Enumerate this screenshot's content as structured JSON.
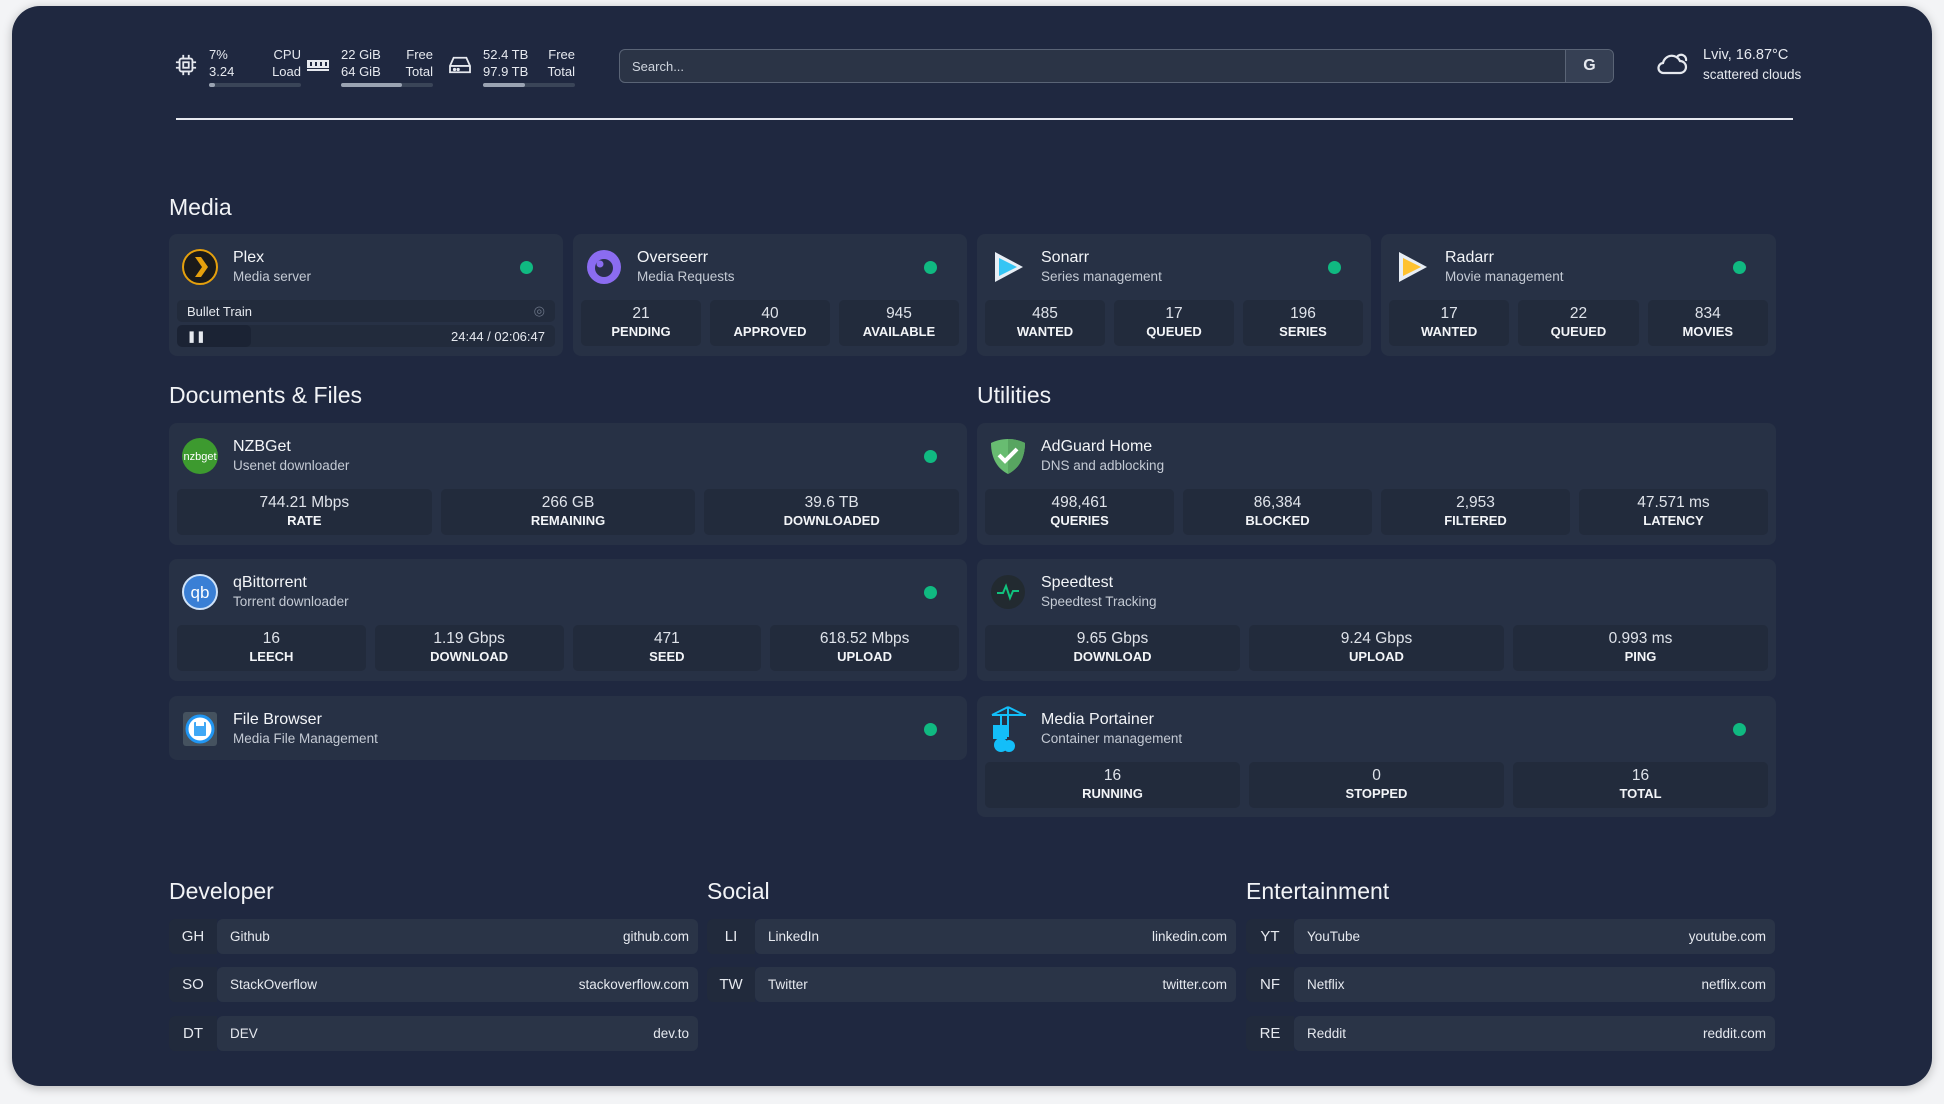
{
  "header": {
    "cpu": {
      "icon": "cpu-icon",
      "value": "7%",
      "label": "CPU",
      "value2": "3.24",
      "label2": "Load",
      "percent": 7
    },
    "memory": {
      "icon": "memory-icon",
      "value": "22 GiB",
      "label": "Free",
      "value2": "64 GiB",
      "label2": "Total",
      "percent": 66
    },
    "disk": {
      "icon": "disk-icon",
      "value": "52.4 TB",
      "label": "Free",
      "value2": "97.9 TB",
      "label2": "Total",
      "percent": 46
    },
    "search": {
      "placeholder": "Search...",
      "button": "G"
    },
    "weather": {
      "icon": "cloud-icon",
      "location": "Lviv, 16.87°C",
      "condition": "scattered clouds"
    }
  },
  "colors": {
    "background": "#1f2840",
    "card": "#273145",
    "status_online": "#10b981"
  },
  "sections": {
    "media": "Media",
    "documents": "Documents & Files",
    "utilities": "Utilities",
    "developer": "Developer",
    "social": "Social",
    "entertainment": "Entertainment"
  },
  "services": [
    {
      "id": "plex",
      "group": "media",
      "title": "Plex",
      "subtitle": "Media server",
      "icon": "plex-icon",
      "status": "online",
      "now_playing": {
        "title": "Bullet Train",
        "time": "24:44 / 02:06:47",
        "progress_percent": 19.5
      }
    },
    {
      "id": "overseerr",
      "group": "media",
      "title": "Overseerr",
      "subtitle": "Media Requests",
      "icon": "overseerr-icon",
      "status": "online",
      "stats": [
        {
          "value": "21",
          "label": "PENDING"
        },
        {
          "value": "40",
          "label": "APPROVED"
        },
        {
          "value": "945",
          "label": "AVAILABLE"
        }
      ]
    },
    {
      "id": "sonarr",
      "group": "media",
      "title": "Sonarr",
      "subtitle": "Series management",
      "icon": "sonarr-icon",
      "status": "online",
      "stats": [
        {
          "value": "485",
          "label": "WANTED"
        },
        {
          "value": "17",
          "label": "QUEUED"
        },
        {
          "value": "196",
          "label": "SERIES"
        }
      ]
    },
    {
      "id": "radarr",
      "group": "media",
      "title": "Radarr",
      "subtitle": "Movie management",
      "icon": "radarr-icon",
      "status": "online",
      "stats": [
        {
          "value": "17",
          "label": "WANTED"
        },
        {
          "value": "22",
          "label": "QUEUED"
        },
        {
          "value": "834",
          "label": "MOVIES"
        }
      ]
    },
    {
      "id": "nzbget",
      "group": "documents",
      "title": "NZBGet",
      "subtitle": "Usenet downloader",
      "icon": "nzbget-icon",
      "status": "online",
      "stats": [
        {
          "value": "744.21 Mbps",
          "label": "RATE"
        },
        {
          "value": "266 GB",
          "label": "REMAINING"
        },
        {
          "value": "39.6 TB",
          "label": "DOWNLOADED"
        }
      ]
    },
    {
      "id": "qbittorrent",
      "group": "documents",
      "title": "qBittorrent",
      "subtitle": "Torrent downloader",
      "icon": "qbittorrent-icon",
      "status": "online",
      "stats": [
        {
          "value": "16",
          "label": "LEECH"
        },
        {
          "value": "1.19 Gbps",
          "label": "DOWNLOAD"
        },
        {
          "value": "471",
          "label": "SEED"
        },
        {
          "value": "618.52 Mbps",
          "label": "UPLOAD"
        }
      ]
    },
    {
      "id": "filebrowser",
      "group": "documents",
      "title": "File Browser",
      "subtitle": "Media File Management",
      "icon": "filebrowser-icon",
      "status": "online"
    },
    {
      "id": "adguard",
      "group": "utilities",
      "title": "AdGuard Home",
      "subtitle": "DNS and adblocking",
      "icon": "adguard-icon",
      "stats": [
        {
          "value": "498,461",
          "label": "QUERIES"
        },
        {
          "value": "86,384",
          "label": "BLOCKED"
        },
        {
          "value": "2,953",
          "label": "FILTERED"
        },
        {
          "value": "47.571 ms",
          "label": "LATENCY"
        }
      ]
    },
    {
      "id": "speedtest",
      "group": "utilities",
      "title": "Speedtest",
      "subtitle": "Speedtest Tracking",
      "icon": "speedtest-icon",
      "stats": [
        {
          "value": "9.65 Gbps",
          "label": "DOWNLOAD"
        },
        {
          "value": "9.24 Gbps",
          "label": "UPLOAD"
        },
        {
          "value": "0.993 ms",
          "label": "PING"
        }
      ]
    },
    {
      "id": "portainer",
      "group": "utilities",
      "title": "Media Portainer",
      "subtitle": "Container management",
      "icon": "portainer-icon",
      "status": "online",
      "stats": [
        {
          "value": "16",
          "label": "RUNNING"
        },
        {
          "value": "0",
          "label": "STOPPED"
        },
        {
          "value": "16",
          "label": "TOTAL"
        }
      ]
    }
  ],
  "bookmarks": {
    "developer": [
      {
        "abbr": "GH",
        "name": "Github",
        "url": "github.com"
      },
      {
        "abbr": "SO",
        "name": "StackOverflow",
        "url": "stackoverflow.com"
      },
      {
        "abbr": "DT",
        "name": "DEV",
        "url": "dev.to"
      }
    ],
    "social": [
      {
        "abbr": "LI",
        "name": "LinkedIn",
        "url": "linkedin.com"
      },
      {
        "abbr": "TW",
        "name": "Twitter",
        "url": "twitter.com"
      }
    ],
    "entertainment": [
      {
        "abbr": "YT",
        "name": "YouTube",
        "url": "youtube.com"
      },
      {
        "abbr": "NF",
        "name": "Netflix",
        "url": "netflix.com"
      },
      {
        "abbr": "RE",
        "name": "Reddit",
        "url": "reddit.com"
      }
    ]
  }
}
